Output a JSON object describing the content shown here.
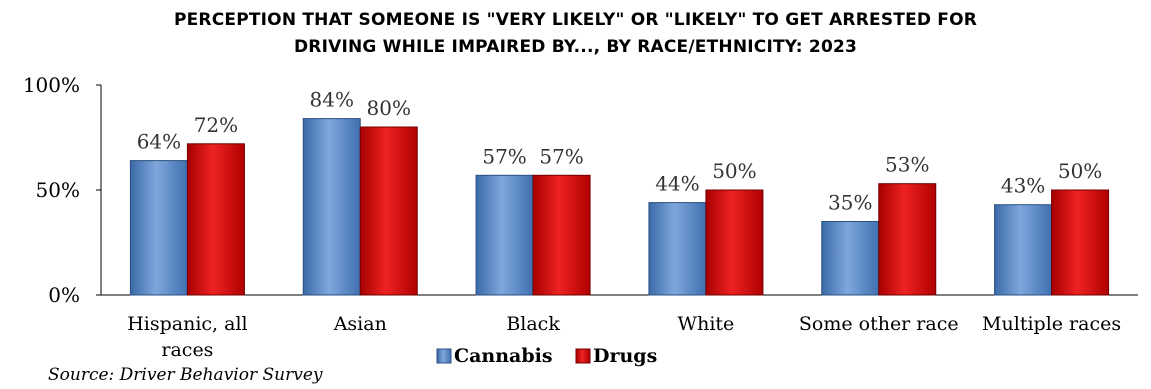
{
  "chart_data": {
    "type": "bar",
    "title_line1": "PERCEPTION THAT SOMEONE IS \"VERY LIKELY\" OR \"LIKELY\" TO GET ARRESTED FOR",
    "title_line2": "DRIVING WHILE IMPAIRED BY..., BY RACE/ETHNICITY:  2023",
    "categories": [
      [
        "Hispanic, all",
        "races"
      ],
      [
        "Asian"
      ],
      [
        "Black"
      ],
      [
        "White"
      ],
      [
        "Some other race"
      ],
      [
        "Multiple races"
      ]
    ],
    "series": [
      {
        "name": "Cannabis",
        "values": [
          64,
          84,
          57,
          44,
          35,
          43
        ],
        "labels": [
          "64%",
          "84%",
          "57%",
          "44%",
          "35%",
          "43%"
        ],
        "color": "#4f81bd"
      },
      {
        "name": "Drugs",
        "values": [
          72,
          80,
          57,
          50,
          53,
          50
        ],
        "labels": [
          "72%",
          "80%",
          "57%",
          "50%",
          "53%",
          "50%"
        ],
        "color": "#c00000"
      }
    ],
    "ylim": [
      0,
      100
    ],
    "yticks": [
      0,
      50,
      100
    ],
    "ytick_labels": [
      "0%",
      "50%",
      "100%"
    ],
    "grid": false,
    "legend_position": "bottom"
  },
  "source": "Source: Driver Behavior Survey"
}
